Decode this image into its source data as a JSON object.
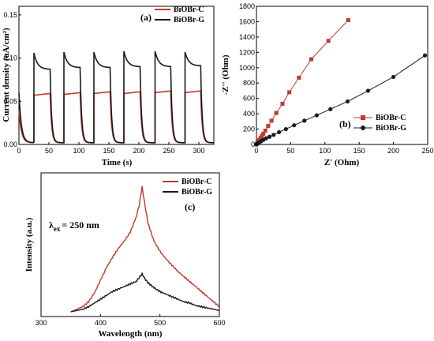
{
  "chart_data": [
    {
      "id": "a",
      "type": "line",
      "panel_label": "(a)",
      "xlabel": "Time (s)",
      "ylabel": "Current density (uA/cm²)",
      "xlim": [
        0,
        325
      ],
      "ylim": [
        0,
        0.16
      ],
      "xticks": [
        0,
        50,
        100,
        150,
        200,
        250,
        300
      ],
      "yticks": [
        0.0,
        0.05,
        0.1,
        0.15
      ],
      "ytick_labels": [
        "0.00",
        "0.05",
        "0.10",
        "0.15"
      ],
      "legend_position": "top-right",
      "grid": false,
      "on_times": [
        25,
        75,
        125,
        175,
        227,
        277
      ],
      "off_times": [
        52,
        102,
        152,
        202,
        253,
        303
      ],
      "series": [
        {
          "name": "BiOBr-C",
          "color": "#c0392b",
          "photocurrent_start": [
            0.057,
            0.058,
            0.059,
            0.059,
            0.06,
            0.06
          ],
          "photocurrent_end": [
            0.059,
            0.06,
            0.061,
            0.061,
            0.062,
            0.062
          ]
        },
        {
          "name": "BiOBr-G",
          "color": "#1a1a1a",
          "photocurrent_start": [
            0.106,
            0.107,
            0.107,
            0.108,
            0.108,
            0.107
          ],
          "photocurrent_end": [
            0.087,
            0.089,
            0.089,
            0.09,
            0.09,
            0.091
          ]
        }
      ]
    },
    {
      "id": "b",
      "type": "scatter",
      "panel_label": "(b)",
      "xlabel": "Z' (Ohm)",
      "ylabel": "-Z'' (Ohm)",
      "xlim": [
        0,
        250
      ],
      "ylim": [
        0,
        1800
      ],
      "xticks": [
        0,
        50,
        100,
        150,
        200,
        250
      ],
      "yticks": [
        0,
        200,
        400,
        600,
        800,
        1000,
        1200,
        1400,
        1600,
        1800
      ],
      "legend_position": "bottom-right",
      "grid": false,
      "series": [
        {
          "name": "BiOBr-C",
          "color": "#c0392b",
          "marker": "square",
          "x": [
            0,
            1,
            2,
            3,
            4,
            6,
            8,
            10,
            13,
            17,
            22,
            29,
            38,
            48,
            62,
            80,
            105,
            134
          ],
          "y": [
            0,
            15,
            30,
            45,
            60,
            85,
            110,
            140,
            180,
            240,
            310,
            410,
            530,
            680,
            870,
            1110,
            1350,
            1620
          ]
        },
        {
          "name": "BiOBr-G",
          "color": "#1a1a1a",
          "marker": "circle",
          "x": [
            0,
            1,
            2,
            3,
            5,
            7,
            10,
            14,
            19,
            25,
            33,
            43,
            55,
            70,
            88,
            108,
            133,
            163,
            200,
            246
          ],
          "y": [
            0,
            8,
            15,
            22,
            33,
            45,
            60,
            80,
            100,
            125,
            160,
            200,
            250,
            310,
            380,
            460,
            560,
            700,
            880,
            1160
          ]
        }
      ]
    },
    {
      "id": "c",
      "type": "line",
      "panel_label": "(c)",
      "xlabel": "Wavelength (nm)",
      "ylabel": "Intensity (a.u.)",
      "annotation_prefix": "λ",
      "annotation_sub": "ex",
      "annotation_value": "= 250 nm",
      "xlim": [
        300,
        600
      ],
      "ylim": [
        0,
        1
      ],
      "xticks": [
        300,
        400,
        500,
        600
      ],
      "legend_position": "top-right",
      "grid": false,
      "series": [
        {
          "name": "BiOBr-C",
          "color": "#c0392b",
          "x": [
            350,
            360,
            370,
            380,
            390,
            400,
            410,
            420,
            430,
            440,
            450,
            460,
            465,
            470,
            475,
            480,
            485,
            490,
            500,
            510,
            520,
            530,
            540,
            550,
            560,
            570,
            580,
            590,
            600
          ],
          "y": [
            0.0,
            0.02,
            0.04,
            0.08,
            0.15,
            0.25,
            0.35,
            0.43,
            0.5,
            0.56,
            0.63,
            0.75,
            0.84,
            0.99,
            0.84,
            0.7,
            0.63,
            0.56,
            0.48,
            0.42,
            0.37,
            0.32,
            0.28,
            0.24,
            0.2,
            0.16,
            0.12,
            0.08,
            0.04
          ]
        },
        {
          "name": "BiOBr-G",
          "color": "#1a1a1a",
          "x": [
            350,
            360,
            370,
            380,
            390,
            400,
            410,
            420,
            430,
            440,
            450,
            460,
            465,
            470,
            475,
            480,
            485,
            490,
            500,
            510,
            520,
            530,
            540,
            550,
            560,
            570,
            580,
            590,
            600
          ],
          "y": [
            0.0,
            0.01,
            0.02,
            0.04,
            0.07,
            0.1,
            0.13,
            0.16,
            0.18,
            0.2,
            0.22,
            0.24,
            0.27,
            0.3,
            0.26,
            0.23,
            0.21,
            0.19,
            0.16,
            0.14,
            0.12,
            0.1,
            0.08,
            0.07,
            0.05,
            0.04,
            0.03,
            0.02,
            0.01
          ]
        }
      ]
    }
  ]
}
